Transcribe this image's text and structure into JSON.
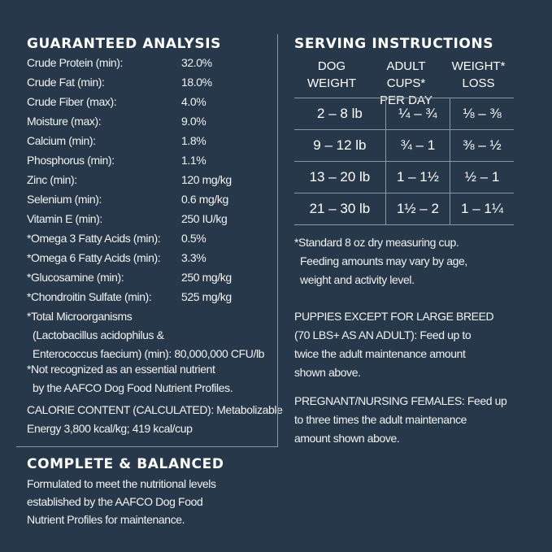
{
  "analysis": {
    "title": "GUARANTEED ANALYSIS",
    "rows": [
      {
        "label": "Crude Protein (min):",
        "value": "32.0%"
      },
      {
        "label": "Crude Fat (min):",
        "value": "18.0%"
      },
      {
        "label": "Crude Fiber (max):",
        "value": "4.0%"
      },
      {
        "label": "Moisture (max):",
        "value": "9.0%"
      },
      {
        "label": "Calcium (min):",
        "value": "1.8%"
      },
      {
        "label": "Phosphorus (min):",
        "value": "1.1%"
      },
      {
        "label": "Zinc (min):",
        "value": "120 mg/kg"
      },
      {
        "label": "Selenium (min):",
        "value": "0.6 mg/kg"
      },
      {
        "label": "Vitamin E (min):",
        "value": "250 IU/kg"
      },
      {
        "label": "*Omega 3 Fatty Acids (min):",
        "value": "0.5%"
      },
      {
        "label": "*Omega 6 Fatty Acids (min):",
        "value": "3.3%"
      },
      {
        "label": "*Glucosamine (min):",
        "value": "250 mg/kg"
      },
      {
        "label": "*Chondroitin Sulfate (min):",
        "value": "525 mg/kg"
      }
    ],
    "micro": [
      "*Total Microorganisms",
      "(Lactobacillus acidophilus &",
      "Enterococcus faecium) (min): 80,000,000 CFU/lb"
    ],
    "note": [
      "*Not recognized as an essential nutrient",
      "by the AAFCO Dog Food Nutrient Profiles."
    ],
    "calorie": [
      "CALORIE CONTENT (CALCULATED): Metabolizable",
      "Energy 3,800 kcal/kg; 419 kcal/cup"
    ]
  },
  "complete": {
    "title": "COMPLETE & BALANCED",
    "lines": [
      "Formulated to meet the nutritional levels",
      "established by the AAFCO Dog Food",
      "Nutrient Profiles for maintenance."
    ]
  },
  "serving": {
    "title": "SERVING INSTRUCTIONS",
    "headers": [
      [
        "DOG",
        "WEIGHT"
      ],
      [
        "ADULT CUPS*",
        "PER DAY"
      ],
      [
        "WEIGHT*",
        "LOSS"
      ]
    ],
    "rows": [
      [
        "2 – 8 lb",
        "¼ – ¾",
        "⅛ – ⅜"
      ],
      [
        "9 – 12 lb",
        "¾ – 1",
        "⅜ – ½"
      ],
      [
        "13 – 20 lb",
        "1 – 1½",
        "½ – 1"
      ],
      [
        "21 – 30 lb",
        "1½ – 2",
        "1 – 1¼"
      ]
    ],
    "footnote": [
      "*Standard 8 oz dry measuring cup.",
      "Feeding amounts may vary by age,",
      "weight and activity level."
    ],
    "puppies": [
      "PUPPIES EXCEPT FOR LARGE BREED",
      "(70 LBS+ AS AN ADULT): Feed up to",
      "twice the adult maintenance amount",
      "shown above."
    ],
    "pregnant": [
      "PREGNANT/NURSING FEMALES: Feed up",
      "to three times the adult maintenance",
      "amount shown above."
    ]
  },
  "colors": {
    "background": "#263849",
    "text": "#f2f2f2",
    "rule": "#8a98a6"
  }
}
